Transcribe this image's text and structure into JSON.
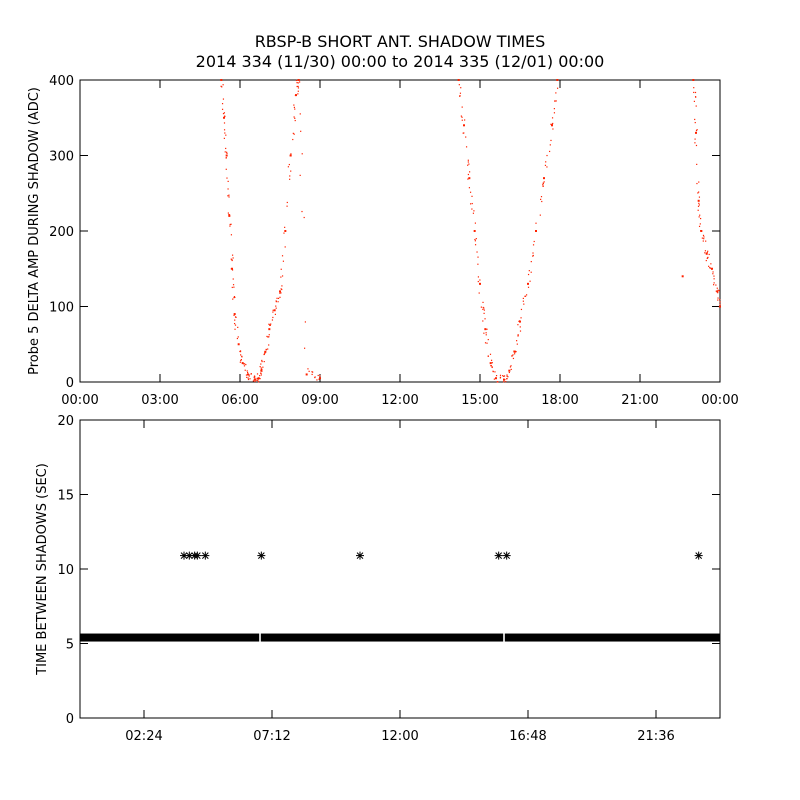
{
  "title": "RBSP-B SHORT ANT. SHADOW TIMES",
  "subtitle": "2014 334 (11/30) 00:00 to 2014 335 (12/01) 00:00",
  "colors": {
    "top_points": "#ff2200",
    "bottom_points": "#000000",
    "axes": "#000000"
  },
  "chart_data": [
    {
      "type": "scatter",
      "panel": "top",
      "ylabel": "Probe 5 DELTA AMP DURING SHADOW (ADC)",
      "xlabel": "",
      "x_units": "hours",
      "xlim": [
        0,
        24
      ],
      "ylim": [
        0,
        400
      ],
      "x_ticks": [
        {
          "value": 0,
          "label": "00:00"
        },
        {
          "value": 3,
          "label": "03:00"
        },
        {
          "value": 6,
          "label": "06:00"
        },
        {
          "value": 9,
          "label": "09:00"
        },
        {
          "value": 12,
          "label": "12:00"
        },
        {
          "value": 15,
          "label": "15:00"
        },
        {
          "value": 18,
          "label": "18:00"
        },
        {
          "value": 21,
          "label": "21:00"
        },
        {
          "value": 24,
          "label": "00:00"
        }
      ],
      "y_ticks": [
        {
          "value": 0,
          "label": "0"
        },
        {
          "value": 100,
          "label": "100"
        },
        {
          "value": 200,
          "label": "200"
        },
        {
          "value": 300,
          "label": "300"
        },
        {
          "value": 400,
          "label": "400"
        }
      ],
      "series": [
        {
          "points": [
            [
              5.3,
              400
            ],
            [
              5.4,
              350
            ],
            [
              5.5,
              300
            ],
            [
              5.6,
              220
            ],
            [
              5.7,
              150
            ],
            [
              5.8,
              90
            ],
            [
              5.95,
              50
            ],
            [
              6.1,
              25
            ],
            [
              6.3,
              10
            ],
            [
              6.55,
              3
            ],
            [
              6.7,
              5
            ],
            [
              6.8,
              15
            ],
            [
              6.95,
              40
            ],
            [
              7.1,
              70
            ],
            [
              7.3,
              95
            ],
            [
              7.5,
              120
            ],
            [
              7.7,
              200
            ],
            [
              7.9,
              300
            ],
            [
              8.1,
              380
            ],
            [
              8.2,
              400
            ],
            [
              8.5,
              10
            ],
            [
              9.0,
              5
            ],
            [
              14.2,
              400
            ],
            [
              14.4,
              340
            ],
            [
              14.6,
              270
            ],
            [
              14.8,
              200
            ],
            [
              15.0,
              130
            ],
            [
              15.2,
              70
            ],
            [
              15.4,
              25
            ],
            [
              15.6,
              5
            ],
            [
              15.9,
              3
            ],
            [
              16.1,
              15
            ],
            [
              16.3,
              40
            ],
            [
              16.5,
              80
            ],
            [
              16.8,
              130
            ],
            [
              17.1,
              200
            ],
            [
              17.4,
              270
            ],
            [
              17.7,
              340
            ],
            [
              17.9,
              400
            ],
            [
              23.0,
              400
            ],
            [
              23.1,
              330
            ],
            [
              23.2,
              240
            ],
            [
              23.3,
              200
            ],
            [
              23.5,
              170
            ],
            [
              23.7,
              150
            ],
            [
              23.9,
              120
            ],
            [
              24.0,
              100
            ],
            [
              22.6,
              140
            ]
          ]
        }
      ]
    },
    {
      "type": "scatter",
      "panel": "bottom",
      "ylabel": "TIME BETWEEN SHADOWS (SEC)",
      "xlabel": "",
      "x_units": "hours",
      "xlim": [
        0,
        24
      ],
      "ylim": [
        0,
        20
      ],
      "x_ticks": [
        {
          "value": 2.4,
          "label": "02:24"
        },
        {
          "value": 7.2,
          "label": "07:12"
        },
        {
          "value": 12.0,
          "label": "12:00"
        },
        {
          "value": 16.8,
          "label": "16:48"
        },
        {
          "value": 21.6,
          "label": "21:36"
        }
      ],
      "y_ticks": [
        {
          "value": 0,
          "label": "0"
        },
        {
          "value": 5,
          "label": "5"
        },
        {
          "value": 10,
          "label": "10"
        },
        {
          "value": 15,
          "label": "15"
        },
        {
          "value": 20,
          "label": "20"
        }
      ],
      "baseline": {
        "y": 5.4,
        "x_range": [
          0,
          24
        ],
        "gaps": [
          6.75,
          15.9
        ]
      },
      "series": [
        {
          "points": [
            [
              3.9,
              10.9
            ],
            [
              4.1,
              10.9
            ],
            [
              4.3,
              10.9
            ],
            [
              4.4,
              10.9
            ],
            [
              4.7,
              10.9
            ],
            [
              6.8,
              10.9
            ],
            [
              10.5,
              10.9
            ],
            [
              15.7,
              10.9
            ],
            [
              16.0,
              10.9
            ],
            [
              23.2,
              10.9
            ]
          ]
        }
      ]
    }
  ]
}
